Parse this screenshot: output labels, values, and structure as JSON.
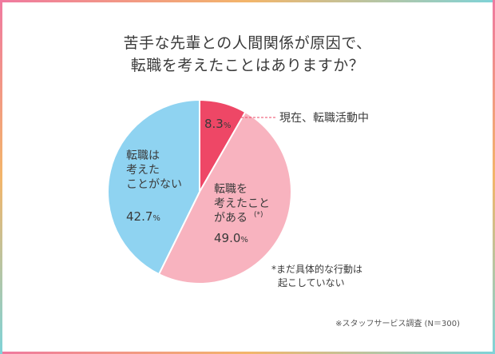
{
  "title": {
    "line1": "苦手な先輩との人間関係が原因で、",
    "line2": "転職を考えたことはありますか？"
  },
  "chart_data": {
    "type": "pie",
    "title": "苦手な先輩との人間関係が原因で、転職を考えたことはありますか？",
    "slices": [
      {
        "label": "現在、転職活動中",
        "value": 8.3,
        "display": "8.3",
        "unit": "%",
        "color": "#ee4766"
      },
      {
        "label": "転職を考えたことがある(*)",
        "lines": [
          "転職を",
          "考えたこと",
          "がある"
        ],
        "mark": "(*)",
        "value": 49.0,
        "display": "49.0",
        "unit": "%",
        "color": "#f8b3bf"
      },
      {
        "label": "転職は考えたことがない",
        "lines": [
          "転職は",
          "考えた",
          "ことがない"
        ],
        "value": 42.7,
        "display": "42.7",
        "unit": "%",
        "color": "#8fd3f1"
      }
    ],
    "start_angle_deg": 0,
    "direction": "clockwise"
  },
  "note": {
    "line1": "*まだ具体的な行動は",
    "line2": "起こしていない"
  },
  "source": "※スタッフサービス調査 (N＝300)"
}
